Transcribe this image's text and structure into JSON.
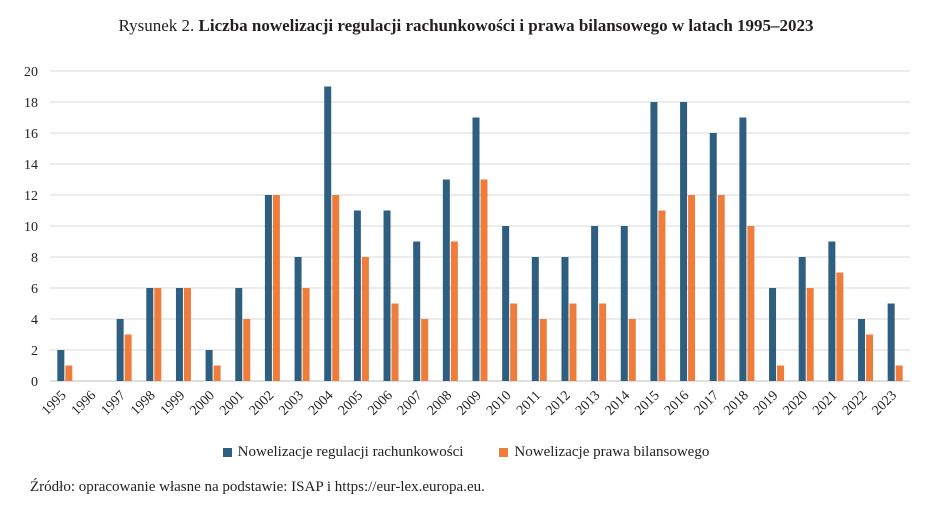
{
  "figure": {
    "label": "Rysunek 2.",
    "title": "Liczba nowelizacji regulacji rachunkowości i prawa bilansowego w latach 1995–2023",
    "source": "Źródło: opracowanie własne na podstawie: ISAP i https://eur-lex.europa.eu."
  },
  "chart_data": {
    "type": "bar",
    "categories": [
      "1995",
      "1996",
      "1997",
      "1998",
      "1999",
      "2000",
      "2001",
      "2002",
      "2003",
      "2004",
      "2005",
      "2006",
      "2007",
      "2008",
      "2009",
      "2010",
      "2011",
      "2012",
      "2013",
      "2014",
      "2015",
      "2016",
      "2017",
      "2018",
      "2019",
      "2020",
      "2021",
      "2022",
      "2023"
    ],
    "series": [
      {
        "name": "Nowelizacje regulacji rachunkowości",
        "color": "#2e5f80",
        "values": [
          2,
          0,
          4,
          6,
          6,
          2,
          6,
          12,
          8,
          19,
          11,
          11,
          9,
          13,
          17,
          10,
          8,
          8,
          10,
          10,
          18,
          18,
          16,
          17,
          6,
          8,
          9,
          4,
          5
        ]
      },
      {
        "name": "Nowelizacje prawa bilansowego",
        "color": "#ee7d3c",
        "values": [
          1,
          0,
          3,
          6,
          6,
          1,
          4,
          12,
          6,
          12,
          8,
          5,
          4,
          9,
          13,
          5,
          4,
          5,
          5,
          4,
          11,
          12,
          12,
          10,
          1,
          6,
          7,
          3,
          1
        ]
      }
    ],
    "ylim": [
      0,
      20
    ],
    "yticks": [
      0,
      2,
      4,
      6,
      8,
      10,
      12,
      14,
      16,
      18,
      20
    ],
    "grid": true,
    "legend": "bottom"
  }
}
